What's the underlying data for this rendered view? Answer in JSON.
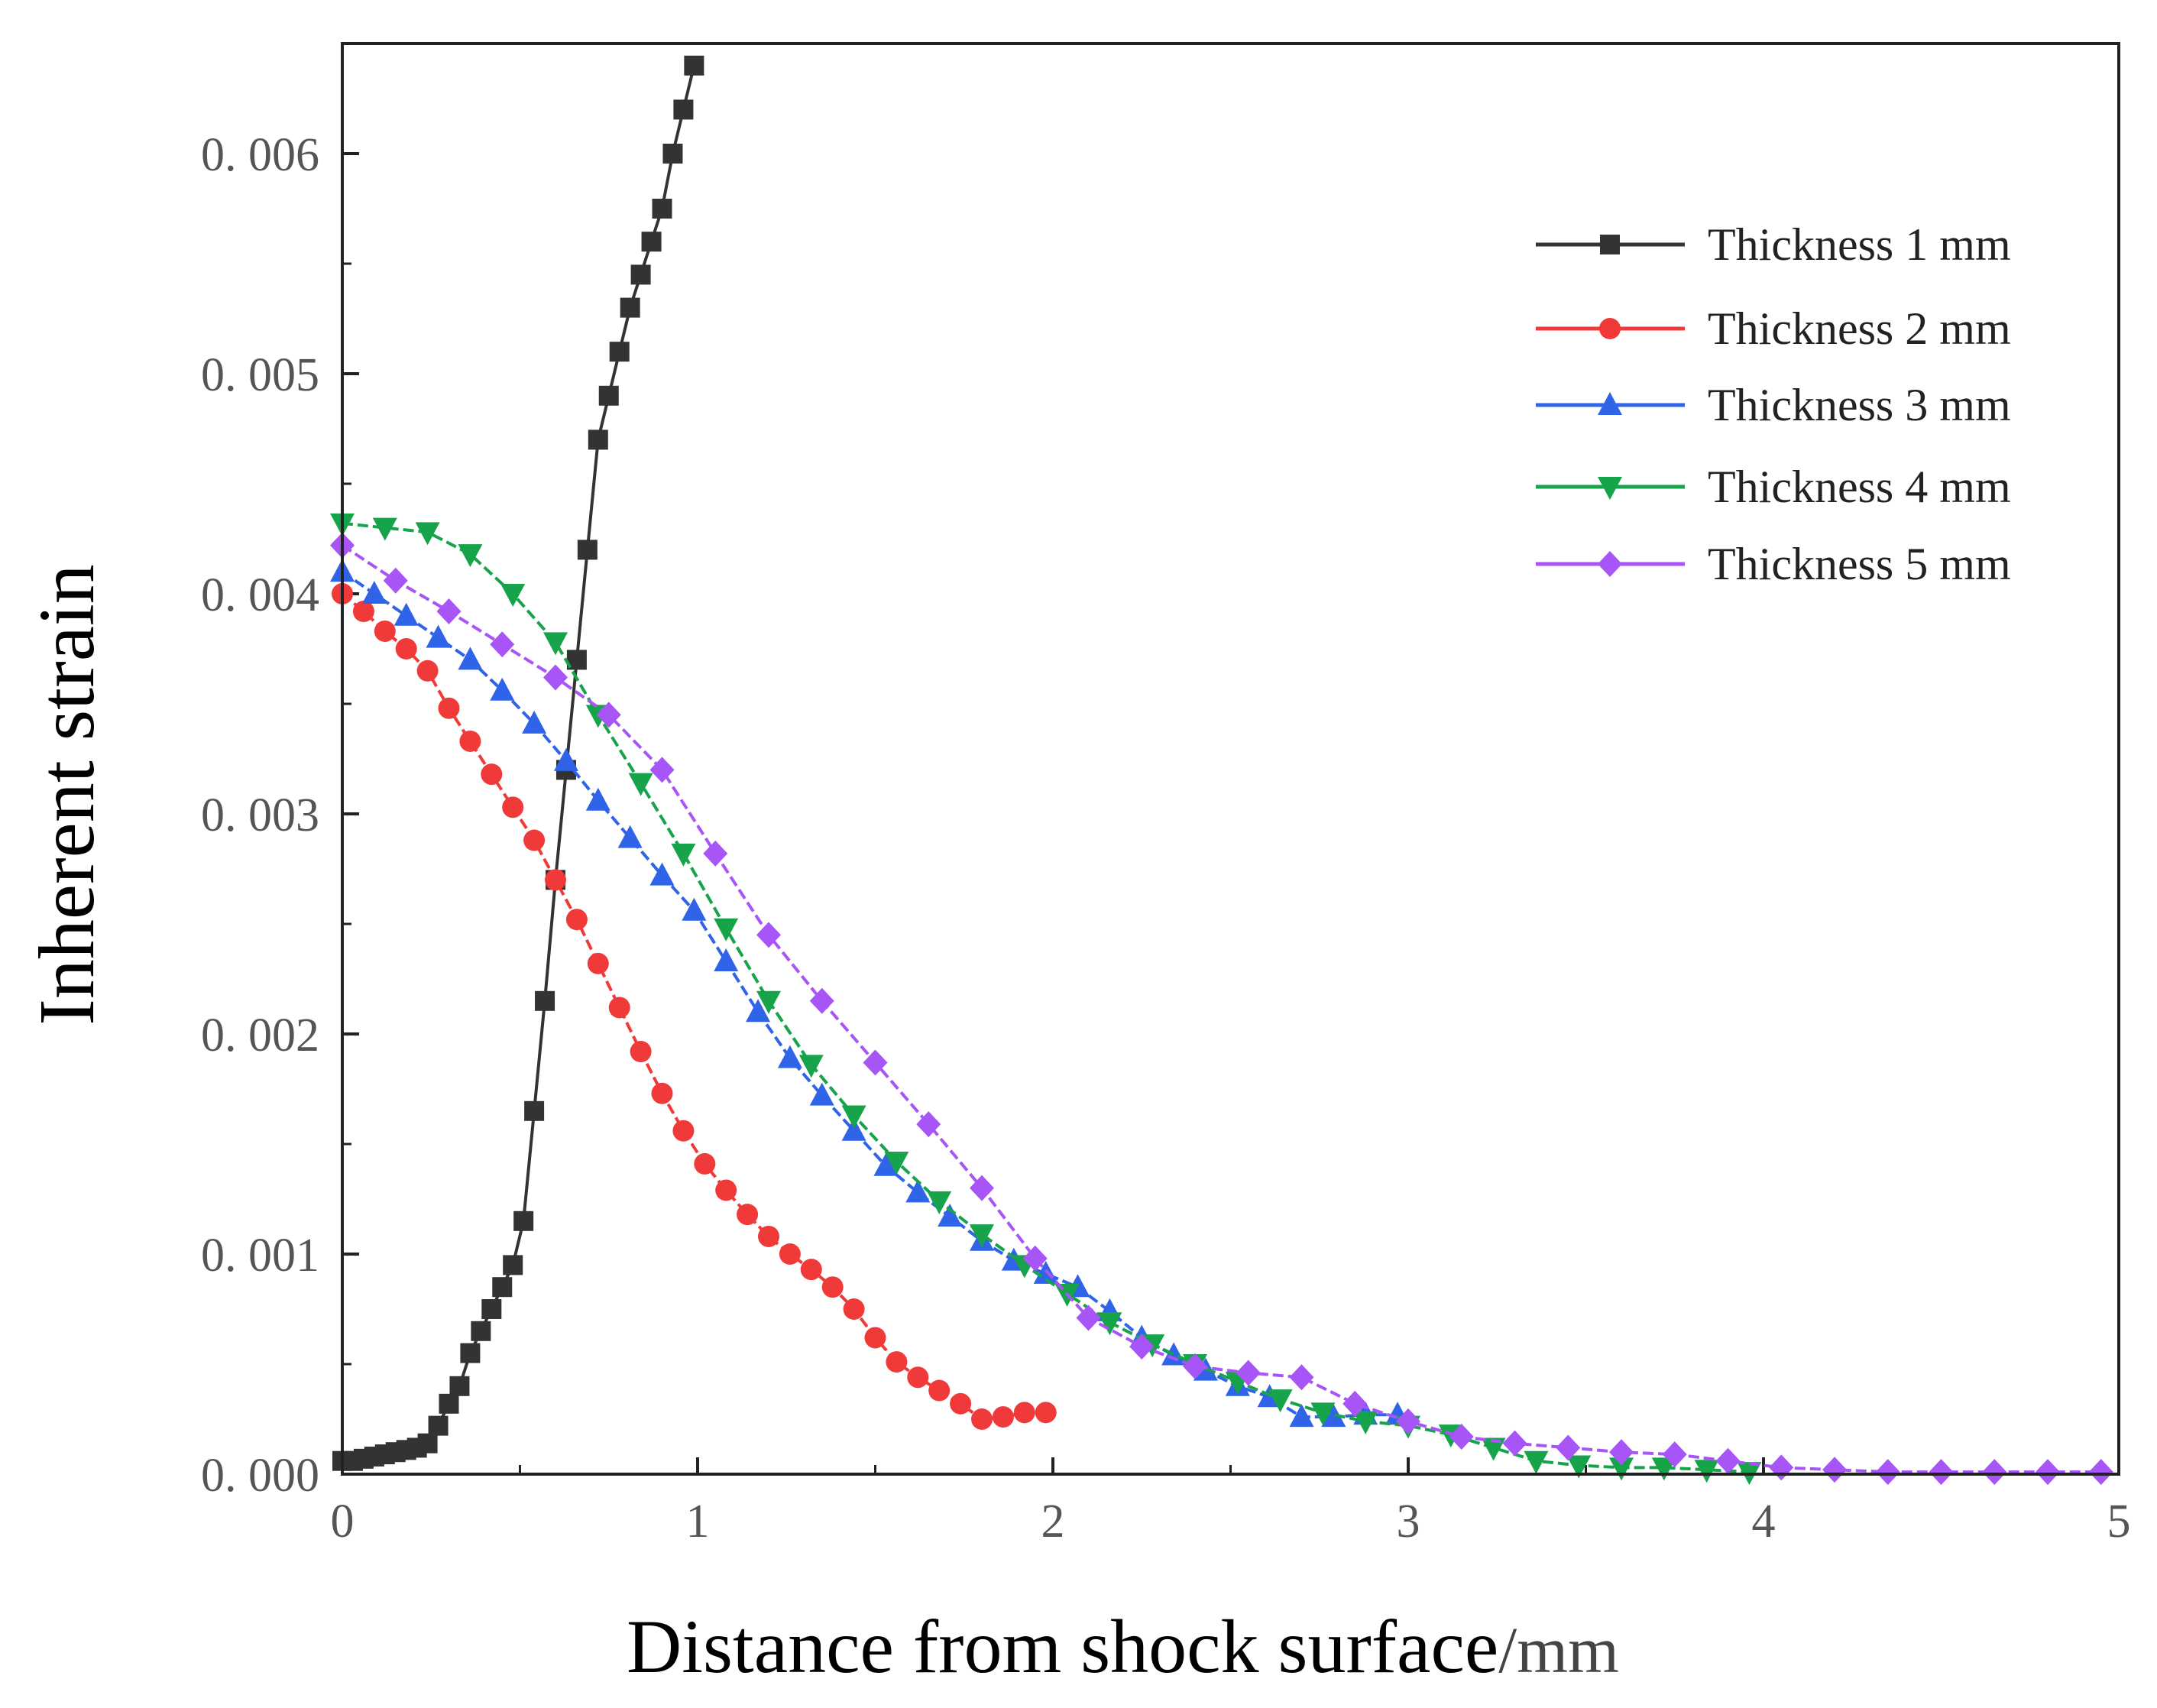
{
  "chart_data": {
    "type": "line",
    "title": "",
    "xlabel": "Distance from shock surface",
    "xlabel_unit": "/mm",
    "ylabel": "Inherent strain",
    "xlim": [
      0,
      5
    ],
    "ylim": [
      0,
      0.0065
    ],
    "xticks": [
      0,
      1,
      2,
      3,
      4,
      5
    ],
    "xtick_labels": [
      "0",
      "1",
      "2",
      "3",
      "4",
      "5"
    ],
    "yticks": [
      0,
      0.001,
      0.002,
      0.003,
      0.004,
      0.005,
      0.006
    ],
    "ytick_labels": [
      "0. 000",
      "0. 001",
      "0. 002",
      "0. 003",
      "0. 004",
      "0. 005",
      "0. 006"
    ],
    "legend_position": "top-right",
    "series": [
      {
        "name": "Thickness 1 mm",
        "color": "#333333",
        "marker": "square",
        "x": [
          0,
          0.03,
          0.06,
          0.09,
          0.12,
          0.15,
          0.18,
          0.21,
          0.24,
          0.27,
          0.3,
          0.33,
          0.36,
          0.39,
          0.42,
          0.45,
          0.48,
          0.51,
          0.54,
          0.57,
          0.6,
          0.63,
          0.66,
          0.69,
          0.72,
          0.75,
          0.78,
          0.81,
          0.84,
          0.87,
          0.9,
          0.93,
          0.96,
          0.99
        ],
        "y": [
          6e-05,
          6e-05,
          7e-05,
          8e-05,
          9e-05,
          0.0001,
          0.00011,
          0.00012,
          0.00014,
          0.00022,
          0.00032,
          0.0004,
          0.00055,
          0.00065,
          0.00075,
          0.00085,
          0.00095,
          0.00115,
          0.00165,
          0.00215,
          0.0027,
          0.0032,
          0.0037,
          0.0042,
          0.0047,
          0.0049,
          0.0051,
          0.0053,
          0.00545,
          0.0056,
          0.00575,
          0.006,
          0.0062,
          0.0064
        ]
      },
      {
        "name": "Thickness 2 mm",
        "color": "#f03a3a",
        "marker": "circle",
        "x": [
          0,
          0.06,
          0.12,
          0.18,
          0.24,
          0.3,
          0.36,
          0.42,
          0.48,
          0.54,
          0.6,
          0.66,
          0.72,
          0.78,
          0.84,
          0.9,
          0.96,
          1.02,
          1.08,
          1.14,
          1.2,
          1.26,
          1.32,
          1.38,
          1.44,
          1.5,
          1.56,
          1.62,
          1.68,
          1.74,
          1.8,
          1.86,
          1.92,
          1.98
        ],
        "y": [
          0.004,
          0.00392,
          0.00383,
          0.00375,
          0.00365,
          0.00348,
          0.00333,
          0.00318,
          0.00303,
          0.00288,
          0.0027,
          0.00252,
          0.00232,
          0.00212,
          0.00192,
          0.00173,
          0.00156,
          0.00141,
          0.00129,
          0.00118,
          0.00108,
          0.001,
          0.00093,
          0.00085,
          0.00075,
          0.00062,
          0.00051,
          0.00044,
          0.00038,
          0.00032,
          0.00025,
          0.00026,
          0.00028,
          0.00028
        ]
      },
      {
        "name": "Thickness 3 mm",
        "color": "#2f63e8",
        "marker": "triangle-up",
        "x": [
          0,
          0.09,
          0.18,
          0.27,
          0.36,
          0.45,
          0.54,
          0.63,
          0.72,
          0.81,
          0.9,
          0.99,
          1.08,
          1.17,
          1.26,
          1.35,
          1.44,
          1.53,
          1.62,
          1.71,
          1.8,
          1.89,
          1.98,
          2.07,
          2.16,
          2.25,
          2.34,
          2.43,
          2.52,
          2.61,
          2.7,
          2.79,
          2.88,
          2.97
        ],
        "y": [
          0.0041,
          0.004,
          0.0039,
          0.0038,
          0.0037,
          0.00356,
          0.00341,
          0.00324,
          0.00306,
          0.00289,
          0.00272,
          0.00256,
          0.00233,
          0.0021,
          0.00189,
          0.00172,
          0.00156,
          0.0014,
          0.00128,
          0.00117,
          0.00106,
          0.00097,
          0.00091,
          0.00085,
          0.00074,
          0.00062,
          0.00054,
          0.00047,
          0.0004,
          0.00035,
          0.00026,
          0.00026,
          0.00027,
          0.00027
        ]
      },
      {
        "name": "Thickness 4 mm",
        "color": "#16a34a",
        "marker": "triangle-down",
        "x": [
          0,
          0.12,
          0.24,
          0.36,
          0.48,
          0.6,
          0.72,
          0.84,
          0.96,
          1.08,
          1.2,
          1.32,
          1.44,
          1.56,
          1.68,
          1.8,
          1.92,
          2.04,
          2.16,
          2.28,
          2.4,
          2.52,
          2.64,
          2.76,
          2.88,
          3.0,
          3.12,
          3.24,
          3.36,
          3.48,
          3.6,
          3.72,
          3.84,
          3.96
        ],
        "y": [
          0.00432,
          0.0043,
          0.00428,
          0.00418,
          0.004,
          0.00378,
          0.00345,
          0.00314,
          0.00282,
          0.00248,
          0.00215,
          0.00186,
          0.00163,
          0.00142,
          0.00124,
          0.00109,
          0.00095,
          0.00082,
          0.00069,
          0.00059,
          0.0005,
          0.00042,
          0.00034,
          0.00028,
          0.00024,
          0.00022,
          0.00018,
          0.00012,
          6e-05,
          4e-05,
          3e-05,
          3e-05,
          2e-05,
          1e-05
        ]
      },
      {
        "name": "Thickness 5 mm",
        "color": "#a855f7",
        "marker": "diamond",
        "x": [
          0,
          0.15,
          0.3,
          0.45,
          0.6,
          0.75,
          0.9,
          1.05,
          1.2,
          1.35,
          1.5,
          1.65,
          1.8,
          1.95,
          2.1,
          2.25,
          2.4,
          2.55,
          2.7,
          2.85,
          3.0,
          3.15,
          3.3,
          3.45,
          3.6,
          3.75,
          3.9,
          4.05,
          4.2,
          4.35,
          4.5,
          4.65,
          4.8,
          4.95
        ],
        "y": [
          0.00422,
          0.00406,
          0.00392,
          0.00377,
          0.00362,
          0.00345,
          0.0032,
          0.00282,
          0.00245,
          0.00215,
          0.00187,
          0.00159,
          0.0013,
          0.00098,
          0.00071,
          0.00058,
          0.00049,
          0.00046,
          0.00044,
          0.00032,
          0.00024,
          0.00017,
          0.00014,
          0.00012,
          0.0001,
          9e-05,
          6e-05,
          3e-05,
          2e-05,
          1e-05,
          1e-05,
          1e-05,
          1e-05,
          1e-05
        ]
      }
    ]
  }
}
